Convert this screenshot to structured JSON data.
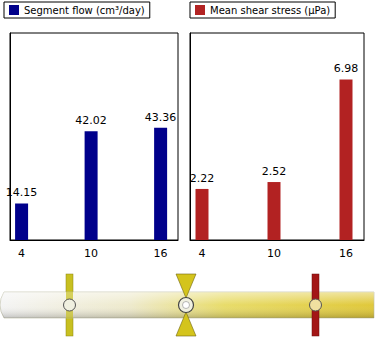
{
  "chart_data": [
    {
      "type": "bar",
      "x": [
        4,
        10,
        16
      ],
      "series": [
        {
          "name": "Segment flow (cm³/day)",
          "color": "#00008b",
          "values": [
            14.15,
            42.02,
            43.36
          ]
        }
      ],
      "xlim": [
        3,
        17.5
      ],
      "xticks": [
        4,
        10,
        16
      ],
      "ylim": [
        0,
        80
      ],
      "data_labels": true,
      "tick_labels": "x",
      "legend": "top",
      "grid": false
    },
    {
      "type": "bar",
      "x": [
        4,
        10,
        16
      ],
      "series": [
        {
          "name": "Mean shear stress (μPa)",
          "color": "#b22222",
          "values": [
            2.22,
            2.52,
            6.98
          ]
        }
      ],
      "xlim": [
        3,
        17.5
      ],
      "xticks": [
        4,
        10,
        16
      ],
      "ylim": [
        0,
        9
      ],
      "data_labels": true,
      "tick_labels": "x",
      "legend": "top",
      "grid": false
    }
  ]
}
